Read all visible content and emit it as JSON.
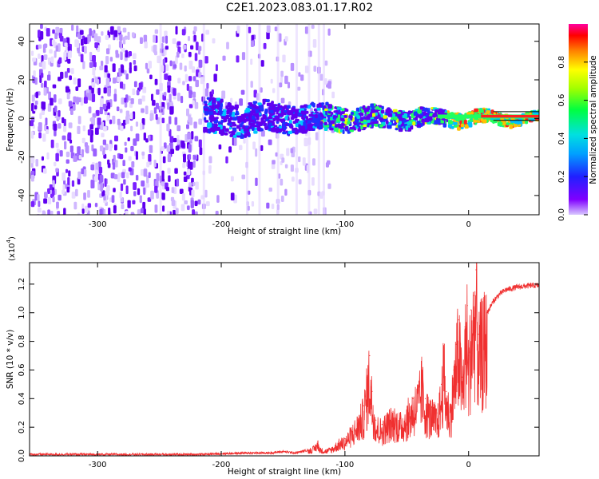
{
  "title": "C2E1.2023.083.01.17.R02",
  "colors": {
    "axis": "#000000",
    "snr_line": "#f03030",
    "spectrogram_low": "#b8a0ff",
    "spectrogram_mid": "#6000f0",
    "spectrogram_high": "#ff0000",
    "colorbar_scheme": "rainbow"
  },
  "chart_data": [
    {
      "type": "heatmap",
      "title": "",
      "xlabel": "Height of straight line (km)",
      "ylabel": "Frequency (Hz)",
      "xlim": [
        -355,
        57
      ],
      "ylim": [
        -50,
        49
      ],
      "xticks": [
        -300,
        -200,
        -100,
        0
      ],
      "xtick_labels": [
        "-300",
        "-200",
        "-100",
        "0"
      ],
      "yticks": [
        -40,
        -20,
        0,
        20,
        40
      ],
      "ytick_labels": [
        "-40",
        "-20",
        "0",
        "20",
        "40"
      ],
      "colorbar": {
        "label": "Normalized spectral amplitude",
        "range": [
          0,
          1
        ],
        "ticks": [
          0.0,
          0.2,
          0.4,
          0.6,
          0.8
        ],
        "tick_labels": [
          "0.0",
          "0.2",
          "0.4",
          "0.6",
          "0.8"
        ],
        "colormap": "rainbow (purple-blue-cyan-green-yellow-red-magenta)"
      },
      "description_values": {
        "noise_region_x": [
          -355,
          -120
        ],
        "signal_band_x": [
          -215,
          57
        ],
        "signal_band_center_hz": 1,
        "signal_band_halfwidth_hz_start": 8,
        "signal_band_halfwidth_hz_end": 1.5
      },
      "grid": false
    },
    {
      "type": "line",
      "title": "",
      "xlabel": "Height of straight line (km)",
      "ylabel": "SNR (10 * v/v)",
      "y_multiplier": "(x10",
      "y_multiplier_exp": "4",
      "y_multiplier_close": ")",
      "xlim": [
        -355,
        57
      ],
      "ylim": [
        0,
        1.35
      ],
      "xticks": [
        -300,
        -200,
        -100,
        0
      ],
      "xtick_labels": [
        "-300",
        "-200",
        "-100",
        "0"
      ],
      "yticks": [
        0.0,
        0.2,
        0.4,
        0.6,
        0.8,
        1.0,
        1.2
      ],
      "ytick_labels": [
        "0.0",
        "0.2",
        "0.4",
        "0.6",
        "0.8",
        "1.0",
        "1.2"
      ],
      "series": [
        {
          "x": [
            -355,
            -300,
            -250,
            -220,
            -200,
            -180,
            -160,
            -150,
            -140,
            -135,
            -130,
            -125,
            -122,
            -120,
            -115,
            -110,
            -105,
            -100,
            -95,
            -90,
            -85,
            -82,
            -80,
            -78,
            -75,
            -70,
            -65,
            -60,
            -55,
            -50,
            -45,
            -40,
            -38,
            -35,
            -30,
            -25,
            -22,
            -20,
            -18,
            -15,
            -12,
            -10,
            -8,
            -5,
            -3,
            -1,
            0,
            2,
            4,
            6,
            8,
            10,
            15,
            20,
            25,
            30,
            40,
            50,
            57
          ],
          "y": [
            0.01,
            0.01,
            0.01,
            0.01,
            0.015,
            0.02,
            0.02,
            0.03,
            0.02,
            0.03,
            0.04,
            0.06,
            0.1,
            0.05,
            0.04,
            0.06,
            0.1,
            0.12,
            0.18,
            0.25,
            0.35,
            0.55,
            0.7,
            0.45,
            0.25,
            0.22,
            0.28,
            0.3,
            0.26,
            0.32,
            0.4,
            0.48,
            0.6,
            0.4,
            0.34,
            0.3,
            0.5,
            0.72,
            0.45,
            0.35,
            0.6,
            0.78,
            0.95,
            0.55,
            0.9,
            1.05,
            0.7,
            1.02,
            1.12,
            1.3,
            0.85,
            0.92,
            1.0,
            1.08,
            1.13,
            1.16,
            1.18,
            1.19,
            1.19
          ]
        }
      ],
      "grid": false
    }
  ]
}
